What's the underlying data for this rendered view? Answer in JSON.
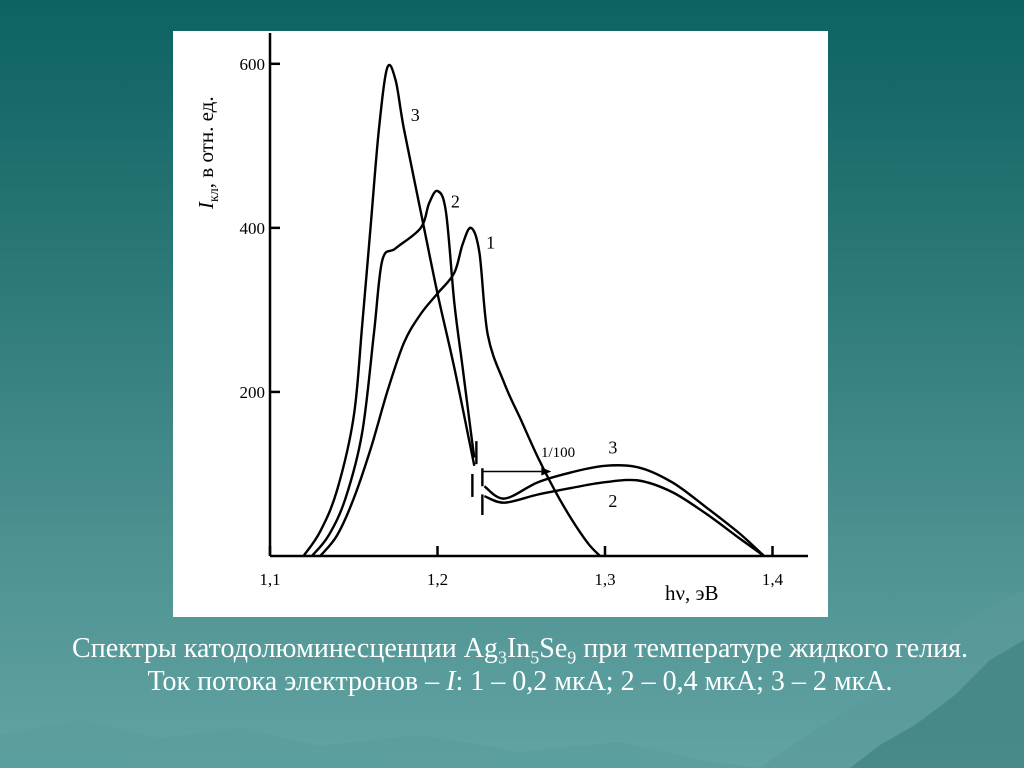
{
  "slide": {
    "background_color": "#1d6e6e",
    "caption": {
      "prefix": "Спектры катодолюминесценции ",
      "f1": "Ag",
      "f1_sub": "3",
      "f2": "In",
      "f2_sub": "5",
      "f3": "Se",
      "f3_sub": "9",
      "mid": " при температуре жидкого гелия. Ток потока электронов – ",
      "italic": "I",
      "suffix": ": 1 – 0,2 мкА; 2 – 0,4 мкА; 3 – 2 мкА."
    }
  },
  "chart_data": {
    "type": "line",
    "xlabel": "hν, эВ",
    "ylabel_italic": "I",
    "ylabel_sub": "кл",
    "ylabel_rest": ", в отн. ед.",
    "xlim": [
      1.1,
      1.42
    ],
    "ylim": [
      0,
      640
    ],
    "x_ticks": [
      1.1,
      1.2,
      1.3,
      1.4
    ],
    "x_tick_labels": [
      "1,1",
      "1,2",
      "1,3",
      "1,4"
    ],
    "y_ticks": [
      200,
      400,
      600
    ],
    "y_tick_labels": [
      "200",
      "400",
      "600"
    ],
    "grid": false,
    "axis_break_x": 1.225,
    "scale_annotation": "1/100",
    "series": [
      {
        "name": "1",
        "segments": [
          [
            [
              1.13,
              0
            ],
            [
              1.14,
              25
            ],
            [
              1.15,
              70
            ],
            [
              1.16,
              130
            ],
            [
              1.17,
              200
            ],
            [
              1.18,
              260
            ],
            [
              1.19,
              295
            ],
            [
              1.2,
              320
            ],
            [
              1.21,
              345
            ],
            [
              1.215,
              380
            ],
            [
              1.22,
              400
            ],
            [
              1.225,
              370
            ],
            [
              1.23,
              270
            ],
            [
              1.24,
              210
            ],
            [
              1.25,
              165
            ],
            [
              1.26,
              120
            ],
            [
              1.27,
              80
            ],
            [
              1.28,
              45
            ],
            [
              1.29,
              15
            ],
            [
              1.297,
              0
            ]
          ]
        ]
      },
      {
        "name": "2",
        "segments": [
          [
            [
              1.125,
              0
            ],
            [
              1.135,
              25
            ],
            [
              1.145,
              70
            ],
            [
              1.155,
              150
            ],
            [
              1.162,
              270
            ],
            [
              1.167,
              360
            ],
            [
              1.175,
              375
            ],
            [
              1.19,
              400
            ],
            [
              1.195,
              430
            ],
            [
              1.2,
              445
            ],
            [
              1.205,
              420
            ],
            [
              1.21,
              310
            ],
            [
              1.215,
              230
            ],
            [
              1.22,
              150
            ],
            [
              1.222,
              120
            ]
          ],
          [
            [
              1.228,
              73
            ],
            [
              1.24,
              65
            ],
            [
              1.26,
              75
            ],
            [
              1.28,
              83
            ],
            [
              1.3,
              90
            ],
            [
              1.32,
              92
            ],
            [
              1.34,
              78
            ],
            [
              1.36,
              52
            ],
            [
              1.38,
              22
            ],
            [
              1.395,
              0
            ]
          ]
        ]
      },
      {
        "name": "3",
        "segments": [
          [
            [
              1.12,
              0
            ],
            [
              1.13,
              30
            ],
            [
              1.14,
              80
            ],
            [
              1.15,
              170
            ],
            [
              1.155,
              280
            ],
            [
              1.16,
              400
            ],
            [
              1.165,
              520
            ],
            [
              1.17,
              595
            ],
            [
              1.175,
              580
            ],
            [
              1.18,
              520
            ],
            [
              1.19,
              420
            ],
            [
              1.2,
              320
            ],
            [
              1.21,
              230
            ],
            [
              1.22,
              130
            ],
            [
              1.222,
              110
            ]
          ],
          [
            [
              1.228,
              85
            ],
            [
              1.24,
              70
            ],
            [
              1.26,
              90
            ],
            [
              1.28,
              102
            ],
            [
              1.3,
              110
            ],
            [
              1.32,
              108
            ],
            [
              1.34,
              90
            ],
            [
              1.36,
              60
            ],
            [
              1.38,
              28
            ],
            [
              1.395,
              0
            ]
          ]
        ]
      }
    ]
  }
}
